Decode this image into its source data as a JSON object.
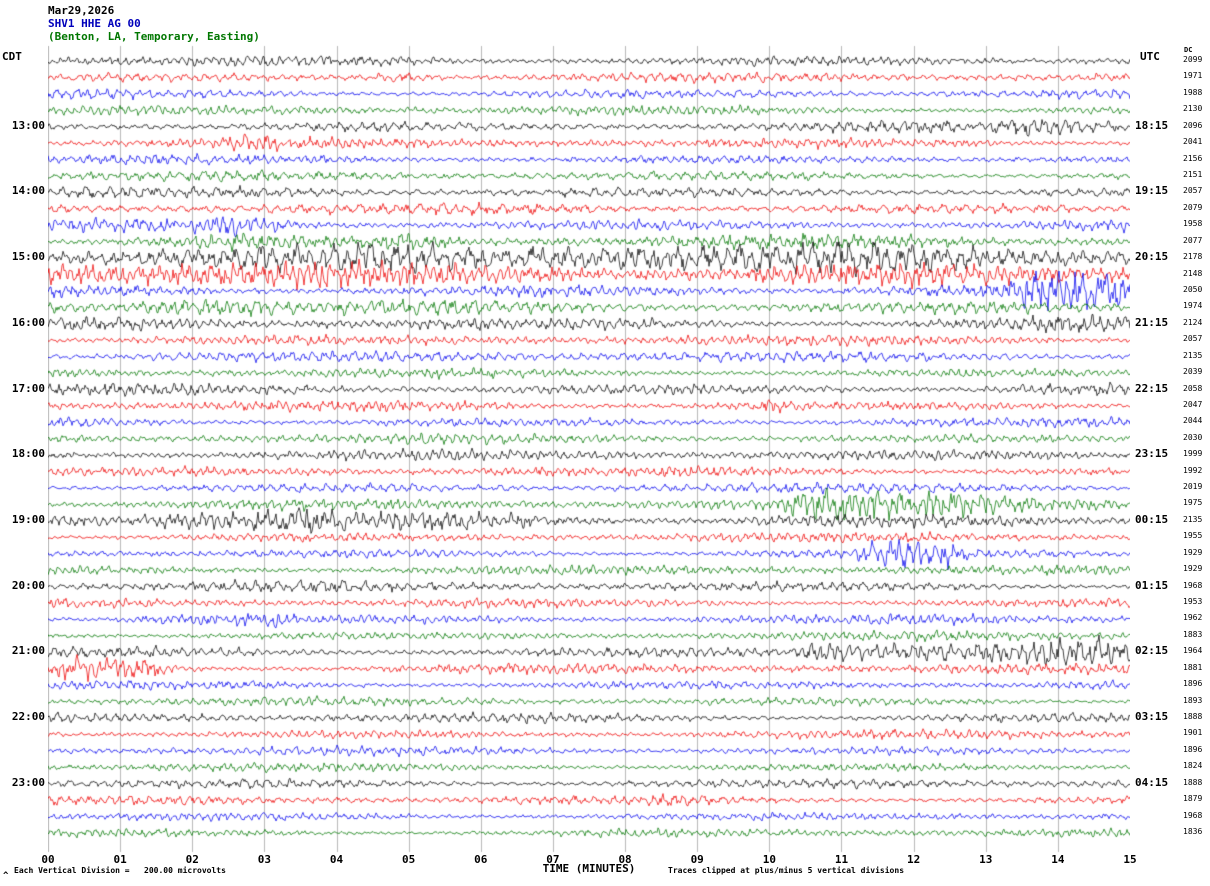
{
  "header": {
    "date": "Mar29,2026",
    "station": "SHV1 HHE AG 00",
    "location": "(Benton, LA, Temporary, Easting)"
  },
  "axes": {
    "left_tz": "CDT",
    "right_tz": "UTC",
    "dc_label": "DC",
    "xlabel": "TIME (MINUTES)",
    "x_ticks": [
      "00",
      "01",
      "02",
      "03",
      "04",
      "05",
      "06",
      "07",
      "08",
      "09",
      "10",
      "11",
      "12",
      "13",
      "14",
      "15"
    ]
  },
  "footer": {
    "left": "Each Vertical Division =   200.00 microvolts",
    "right": "Traces clipped at plus/minus 5 vertical divisions",
    "mark": "^"
  },
  "colors": {
    "grid": "#b9b9b9",
    "station_text": "#0000bb",
    "location_text": "#007700"
  },
  "chart_data": {
    "type": "line",
    "subtype": "helicorder-seismogram",
    "title": "SHV1 HHE AG 00  Mar29,2026  (Benton, LA, Temporary, Easting)",
    "xlabel": "TIME (MINUTES)",
    "x_range": [
      0,
      15
    ],
    "minutes_per_line": 15,
    "lines": 48,
    "start_cdt": "12:00",
    "trace_colors_cycle": [
      "#000000",
      "#ee0000",
      "#0000ee",
      "#007700"
    ],
    "traces": [
      {
        "cdt": "",
        "utc": "",
        "dc": 2099,
        "amp": 1.1,
        "events": []
      },
      {
        "cdt": "",
        "utc": "",
        "dc": 1971,
        "amp": 1.0,
        "events": [
          {
            "s": 4.4,
            "e": 5.4,
            "a": 2.3
          }
        ]
      },
      {
        "cdt": "",
        "utc": "",
        "dc": 1988,
        "amp": 1.0,
        "events": []
      },
      {
        "cdt": "",
        "utc": "",
        "dc": 2130,
        "amp": 1.0,
        "events": []
      },
      {
        "cdt": "13:00",
        "utc": "18:15",
        "dc": 2096,
        "amp": 1.15,
        "events": [
          {
            "s": 13.2,
            "e": 15,
            "a": 1.9
          }
        ]
      },
      {
        "cdt": "",
        "utc": "",
        "dc": 2041,
        "amp": 1.05,
        "events": [
          {
            "s": 2.4,
            "e": 3.1,
            "a": 1.9
          }
        ]
      },
      {
        "cdt": "",
        "utc": "",
        "dc": 2156,
        "amp": 1.0,
        "events": []
      },
      {
        "cdt": "",
        "utc": "",
        "dc": 2151,
        "amp": 1.0,
        "events": []
      },
      {
        "cdt": "14:00",
        "utc": "19:15",
        "dc": 2057,
        "amp": 1.15,
        "events": []
      },
      {
        "cdt": "",
        "utc": "",
        "dc": 2079,
        "amp": 1.1,
        "events": []
      },
      {
        "cdt": "",
        "utc": "",
        "dc": 1958,
        "amp": 1.25,
        "events": [
          {
            "s": 2.1,
            "e": 3.2,
            "a": 2.3
          }
        ]
      },
      {
        "cdt": "",
        "utc": "",
        "dc": 2077,
        "amp": 1.35,
        "events": [
          {
            "s": 2.0,
            "e": 3.0,
            "a": 2.1
          },
          {
            "s": 4.4,
            "e": 5.5,
            "a": 2.1
          }
        ]
      },
      {
        "cdt": "15:00",
        "utc": "20:15",
        "dc": 2178,
        "amp": 3.0,
        "events": [
          {
            "s": 0,
            "e": 1.6,
            "a": 3.6
          },
          {
            "s": 6.3,
            "e": 9.6,
            "a": 3.7
          }
        ]
      },
      {
        "cdt": "",
        "utc": "",
        "dc": 2148,
        "amp": 2.6,
        "events": [
          {
            "s": 0,
            "e": 3.0,
            "a": 3.2
          },
          {
            "s": 6.8,
            "e": 9.3,
            "a": 3.0
          }
        ]
      },
      {
        "cdt": "",
        "utc": "",
        "dc": 2050,
        "amp": 1.35,
        "events": [
          {
            "s": 13.3,
            "e": 15,
            "a": 3.8
          }
        ]
      },
      {
        "cdt": "",
        "utc": "",
        "dc": 1974,
        "amp": 1.5,
        "events": [
          {
            "s": 1.3,
            "e": 3.3,
            "a": 2.8
          }
        ]
      },
      {
        "cdt": "16:00",
        "utc": "21:15",
        "dc": 2124,
        "amp": 1.4,
        "events": [
          {
            "s": 13.5,
            "e": 15,
            "a": 2.0
          }
        ]
      },
      {
        "cdt": "",
        "utc": "",
        "dc": 2057,
        "amp": 1.1,
        "events": []
      },
      {
        "cdt": "",
        "utc": "",
        "dc": 2135,
        "amp": 1.15,
        "events": []
      },
      {
        "cdt": "",
        "utc": "",
        "dc": 2039,
        "amp": 1.0,
        "events": []
      },
      {
        "cdt": "17:00",
        "utc": "22:15",
        "dc": 2058,
        "amp": 1.2,
        "events": [
          {
            "s": 13.0,
            "e": 15,
            "a": 1.8
          }
        ]
      },
      {
        "cdt": "",
        "utc": "",
        "dc": 2047,
        "amp": 1.05,
        "events": [
          {
            "s": 9.6,
            "e": 10.4,
            "a": 1.9
          }
        ]
      },
      {
        "cdt": "",
        "utc": "",
        "dc": 2044,
        "amp": 1.0,
        "events": []
      },
      {
        "cdt": "",
        "utc": "",
        "dc": 2030,
        "amp": 1.0,
        "events": []
      },
      {
        "cdt": "18:00",
        "utc": "23:15",
        "dc": 1999,
        "amp": 1.1,
        "events": []
      },
      {
        "cdt": "",
        "utc": "",
        "dc": 1992,
        "amp": 1.0,
        "events": []
      },
      {
        "cdt": "",
        "utc": "",
        "dc": 2019,
        "amp": 1.0,
        "events": []
      },
      {
        "cdt": "",
        "utc": "",
        "dc": 1975,
        "amp": 1.1,
        "events": [
          {
            "s": 10.3,
            "e": 14.9,
            "a": 3.3
          }
        ]
      },
      {
        "cdt": "19:00",
        "utc": "00:15",
        "dc": 2135,
        "amp": 1.15,
        "events": [
          {
            "s": 0,
            "e": 4.2,
            "a": 3.3
          },
          {
            "s": 4.2,
            "e": 7.6,
            "a": 2.3
          }
        ]
      },
      {
        "cdt": "",
        "utc": "",
        "dc": 1955,
        "amp": 1.0,
        "events": []
      },
      {
        "cdt": "",
        "utc": "",
        "dc": 1929,
        "amp": 1.0,
        "events": [
          {
            "s": 11.3,
            "e": 12.7,
            "a": 2.9
          }
        ]
      },
      {
        "cdt": "",
        "utc": "",
        "dc": 1929,
        "amp": 1.0,
        "events": []
      },
      {
        "cdt": "20:00",
        "utc": "01:15",
        "dc": 1968,
        "amp": 1.1,
        "events": []
      },
      {
        "cdt": "",
        "utc": "",
        "dc": 1953,
        "amp": 1.0,
        "events": []
      },
      {
        "cdt": "",
        "utc": "",
        "dc": 1962,
        "amp": 1.0,
        "events": [
          {
            "s": 1.0,
            "e": 3.4,
            "a": 2.2
          }
        ]
      },
      {
        "cdt": "",
        "utc": "",
        "dc": 1883,
        "amp": 0.95,
        "events": []
      },
      {
        "cdt": "21:00",
        "utc": "02:15",
        "dc": 1964,
        "amp": 1.2,
        "events": [
          {
            "s": 10.4,
            "e": 15,
            "a": 3.3
          }
        ]
      },
      {
        "cdt": "",
        "utc": "",
        "dc": 1881,
        "amp": 1.05,
        "events": [
          {
            "s": 0,
            "e": 1.7,
            "a": 3.1
          }
        ]
      },
      {
        "cdt": "",
        "utc": "",
        "dc": 1896,
        "amp": 0.95,
        "events": []
      },
      {
        "cdt": "",
        "utc": "",
        "dc": 1893,
        "amp": 0.9,
        "events": []
      },
      {
        "cdt": "22:00",
        "utc": "03:15",
        "dc": 1888,
        "amp": 1.05,
        "events": []
      },
      {
        "cdt": "",
        "utc": "",
        "dc": 1901,
        "amp": 0.95,
        "events": []
      },
      {
        "cdt": "",
        "utc": "",
        "dc": 1896,
        "amp": 0.9,
        "events": []
      },
      {
        "cdt": "",
        "utc": "",
        "dc": 1824,
        "amp": 0.9,
        "events": []
      },
      {
        "cdt": "23:00",
        "utc": "04:15",
        "dc": 1888,
        "amp": 1.05,
        "events": []
      },
      {
        "cdt": "",
        "utc": "",
        "dc": 1879,
        "amp": 0.95,
        "events": [
          {
            "s": 8.5,
            "e": 9.1,
            "a": 1.8
          }
        ]
      },
      {
        "cdt": "",
        "utc": "",
        "dc": 1968,
        "amp": 0.9,
        "events": []
      },
      {
        "cdt": "",
        "utc": "",
        "dc": 1836,
        "amp": 0.9,
        "events": []
      }
    ]
  }
}
